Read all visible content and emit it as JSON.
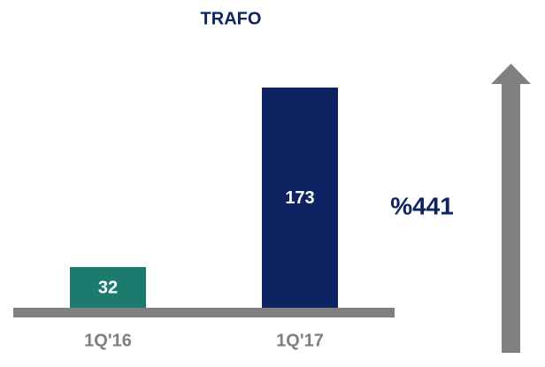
{
  "chart_data": {
    "type": "bar",
    "title": "TRAFO",
    "categories": [
      "1Q'16",
      "1Q'17"
    ],
    "values": [
      32,
      173
    ],
    "colors": [
      "#1b7b6f",
      "#0e2361"
    ],
    "annotation": "%441"
  }
}
